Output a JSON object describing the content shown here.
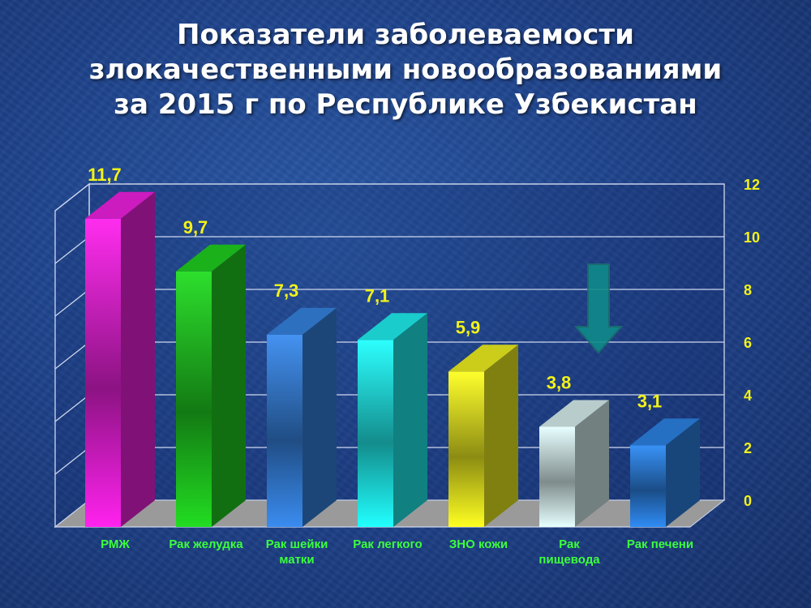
{
  "title_lines": [
    "Показатели заболеваемости",
    "злокачественными новообразованиями",
    "за 2015 г по Республике Узбекистан"
  ],
  "colors": {
    "background": "#1d3f86",
    "value_label": "#f2f21a",
    "category_label": "#3cff3c",
    "axis_label": "#f2f21a",
    "arrow": "#0f8a8a"
  },
  "chart_data": {
    "type": "bar",
    "categories": [
      [
        "РМЖ"
      ],
      [
        "Рак желудка"
      ],
      [
        "Рак шейки",
        "матки"
      ],
      [
        "Рак легкого"
      ],
      [
        "ЗНО кожи"
      ],
      [
        "Рак",
        "пищевода"
      ],
      [
        "Рак печени"
      ]
    ],
    "values": [
      11.7,
      9.7,
      7.3,
      7.1,
      5.9,
      3.8,
      3.1
    ],
    "value_labels": [
      "11,7",
      "9,7",
      "7,3",
      "7,1",
      "5,9",
      "3,8",
      "3,1"
    ],
    "bar_colors": [
      "#ff22ee",
      "#22dd22",
      "#3a8cf0",
      "#22ffff",
      "#ffff22",
      "#e6ffff",
      "#2f8cf5"
    ],
    "y_ticks": [
      "0",
      "2",
      "4",
      "6",
      "8",
      "10",
      "12"
    ],
    "ylim": [
      0,
      12
    ],
    "y_axis_side": "right",
    "grid": true,
    "style": "3d",
    "annotation": "down-arrow"
  }
}
